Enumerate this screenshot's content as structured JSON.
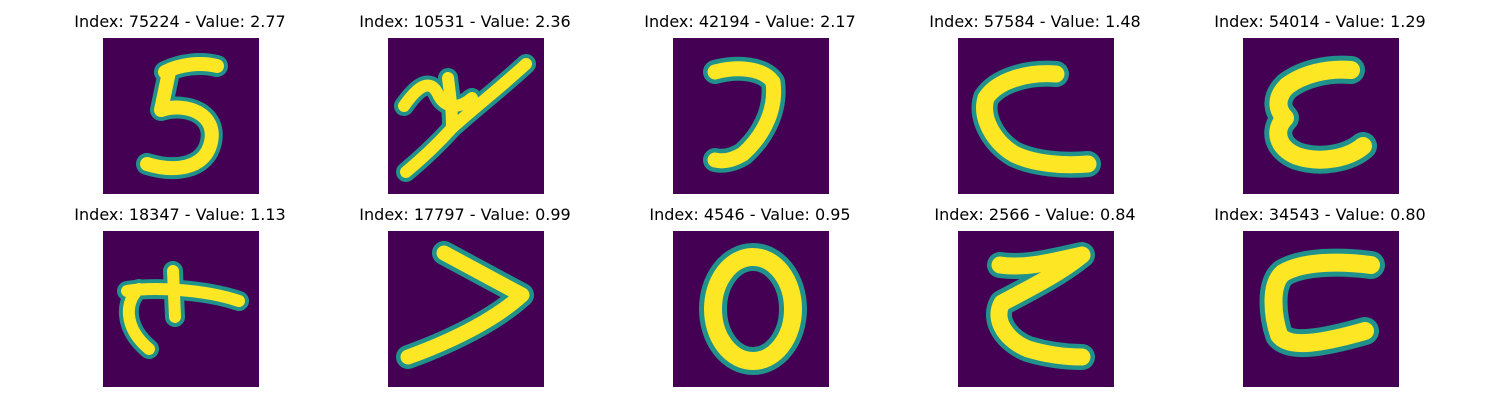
{
  "colors": {
    "background": "#440154",
    "mid": "#21918c",
    "high": "#fde725"
  },
  "panels": [
    {
      "title": "Index: 75224 - Value: 2.77",
      "glyph": "digit-5-like"
    },
    {
      "title": "Index: 10531 - Value: 2.36",
      "glyph": "y-like"
    },
    {
      "title": "Index: 42194 - Value: 2.17",
      "glyph": "digit-7-like"
    },
    {
      "title": "Index: 57584 - Value: 1.48",
      "glyph": "c-like"
    },
    {
      "title": "Index: 54014 - Value: 1.29",
      "glyph": "c-like"
    },
    {
      "title": "Index: 18347 - Value: 1.13",
      "glyph": "t-like"
    },
    {
      "title": "Index: 17797 - Value: 0.99",
      "glyph": "greater-than-like"
    },
    {
      "title": "Index: 4546 - Value: 0.95",
      "glyph": "zero-like"
    },
    {
      "title": "Index: 2566 - Value: 0.84",
      "glyph": "z-like"
    },
    {
      "title": "Index: 34543 - Value: 0.80",
      "glyph": "c-like"
    }
  ]
}
